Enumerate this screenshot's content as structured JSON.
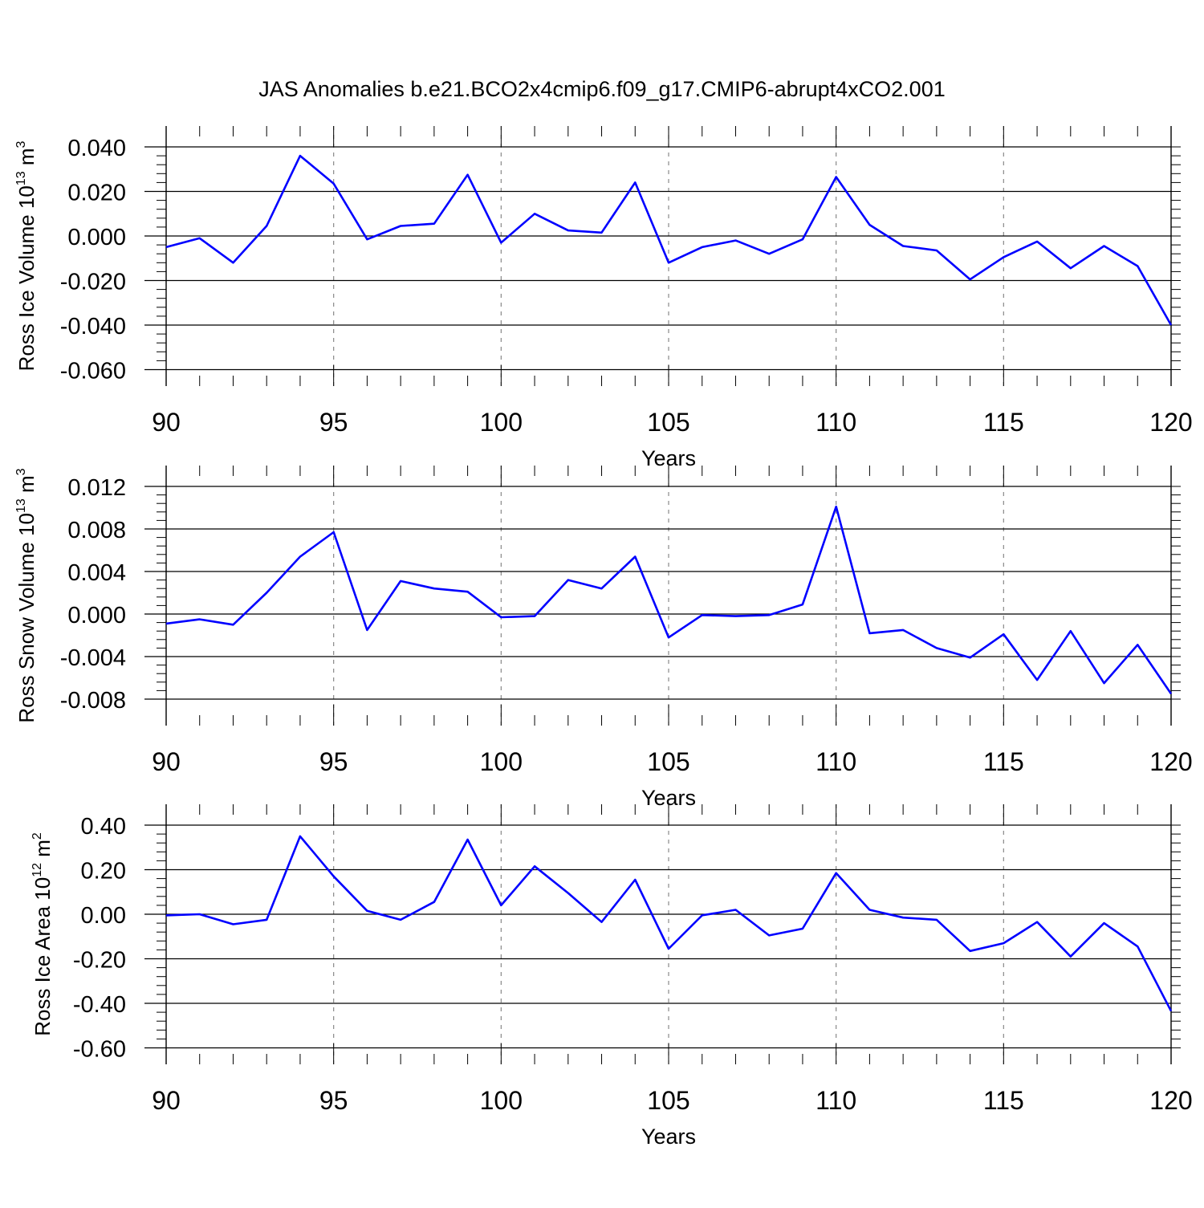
{
  "title": "JAS Anomalies b.e21.BCO2x4cmip6.f09_g17.CMIP6-abrupt4xCO2.001",
  "line_color": "#0000ff",
  "chart_data": [
    {
      "type": "line",
      "ylabel": "Ross Ice Volume 10",
      "ylabel_exp": "13",
      "ylabel_unit": "m",
      "ylabel_unit_exp": "3",
      "xlabel": "Years",
      "xlim": [
        90,
        120
      ],
      "ylim": [
        -0.06,
        0.045
      ],
      "yticks": [
        0.04,
        0.02,
        0.0,
        -0.02,
        -0.04,
        -0.06
      ],
      "ytick_labels": [
        "0.040",
        "0.020",
        "0.000",
        "-0.020",
        "-0.040",
        "-0.060"
      ],
      "xticks": [
        90,
        95,
        100,
        105,
        110,
        115,
        120
      ],
      "xtick_labels": [
        "90",
        "95",
        "100",
        "105",
        "110",
        "115",
        "120"
      ],
      "x": [
        90,
        91,
        92,
        93,
        94,
        95,
        96,
        97,
        98,
        99,
        100,
        101,
        102,
        103,
        104,
        105,
        106,
        107,
        108,
        109,
        110,
        111,
        112,
        113,
        114,
        115,
        116,
        117,
        118,
        119,
        120
      ],
      "values": [
        -0.005,
        -0.001,
        -0.012,
        0.0045,
        0.036,
        0.0235,
        -0.0015,
        0.0045,
        0.0055,
        0.0275,
        -0.003,
        0.01,
        0.0025,
        0.0015,
        0.024,
        -0.012,
        -0.005,
        -0.002,
        -0.008,
        -0.0015,
        0.0265,
        0.005,
        -0.0045,
        -0.0065,
        -0.0195,
        -0.0095,
        -0.0025,
        -0.0145,
        -0.0045,
        -0.0135,
        -0.04
      ]
    },
    {
      "type": "line",
      "ylabel": "Ross Snow Volume 10",
      "ylabel_exp": "13",
      "ylabel_unit": "m",
      "ylabel_unit_exp": "3",
      "xlabel": "Years",
      "xlim": [
        90,
        120
      ],
      "ylim": [
        -0.009,
        0.012
      ],
      "yticks": [
        0.012,
        0.008,
        0.004,
        0.0,
        -0.004,
        -0.008
      ],
      "ytick_labels": [
        "0.012",
        "0.008",
        "0.004",
        "0.000",
        "-0.004",
        "-0.008"
      ],
      "xticks": [
        90,
        95,
        100,
        105,
        110,
        115,
        120
      ],
      "xtick_labels": [
        "90",
        "95",
        "100",
        "105",
        "110",
        "115",
        "120"
      ],
      "x": [
        90,
        91,
        92,
        93,
        94,
        95,
        96,
        97,
        98,
        99,
        100,
        101,
        102,
        103,
        104,
        105,
        106,
        107,
        108,
        109,
        110,
        111,
        112,
        113,
        114,
        115,
        116,
        117,
        118,
        119,
        120
      ],
      "values": [
        -0.0009,
        -0.0005,
        -0.001,
        0.002,
        0.0054,
        0.0077,
        -0.0015,
        0.0031,
        0.0024,
        0.0021,
        -0.0003,
        -0.0002,
        0.0032,
        0.0024,
        0.0054,
        -0.0022,
        -0.0001,
        -0.0002,
        -0.0001,
        0.0009,
        0.0101,
        -0.0018,
        -0.0015,
        -0.0032,
        -0.0041,
        -0.0019,
        -0.0062,
        -0.0016,
        -0.0065,
        -0.0029,
        -0.0075
      ]
    },
    {
      "type": "line",
      "ylabel": "Ross Ice Area 10",
      "ylabel_exp": "12",
      "ylabel_unit": "m",
      "ylabel_unit_exp": "2",
      "xlabel": "Years",
      "xlim": [
        90,
        120
      ],
      "ylim": [
        -0.6,
        0.4
      ],
      "yticks": [
        0.4,
        0.2,
        0.0,
        -0.2,
        -0.4,
        -0.6
      ],
      "ytick_labels": [
        "0.40",
        "0.20",
        "0.00",
        "-0.20",
        "-0.40",
        "-0.60"
      ],
      "xticks": [
        90,
        95,
        100,
        105,
        110,
        115,
        120
      ],
      "xtick_labels": [
        "90",
        "95",
        "100",
        "105",
        "110",
        "115",
        "120"
      ],
      "x": [
        90,
        91,
        92,
        93,
        94,
        95,
        96,
        97,
        98,
        99,
        100,
        101,
        102,
        103,
        104,
        105,
        106,
        107,
        108,
        109,
        110,
        111,
        112,
        113,
        114,
        115,
        116,
        117,
        118,
        119,
        120
      ],
      "values": [
        -0.005,
        0.0,
        -0.045,
        -0.025,
        0.35,
        0.17,
        0.015,
        -0.025,
        0.055,
        0.335,
        0.04,
        0.215,
        0.095,
        -0.035,
        0.155,
        -0.155,
        -0.005,
        0.02,
        -0.095,
        -0.065,
        0.185,
        0.02,
        -0.015,
        -0.025,
        -0.165,
        -0.13,
        -0.035,
        -0.19,
        -0.04,
        -0.145,
        -0.435
      ]
    }
  ]
}
